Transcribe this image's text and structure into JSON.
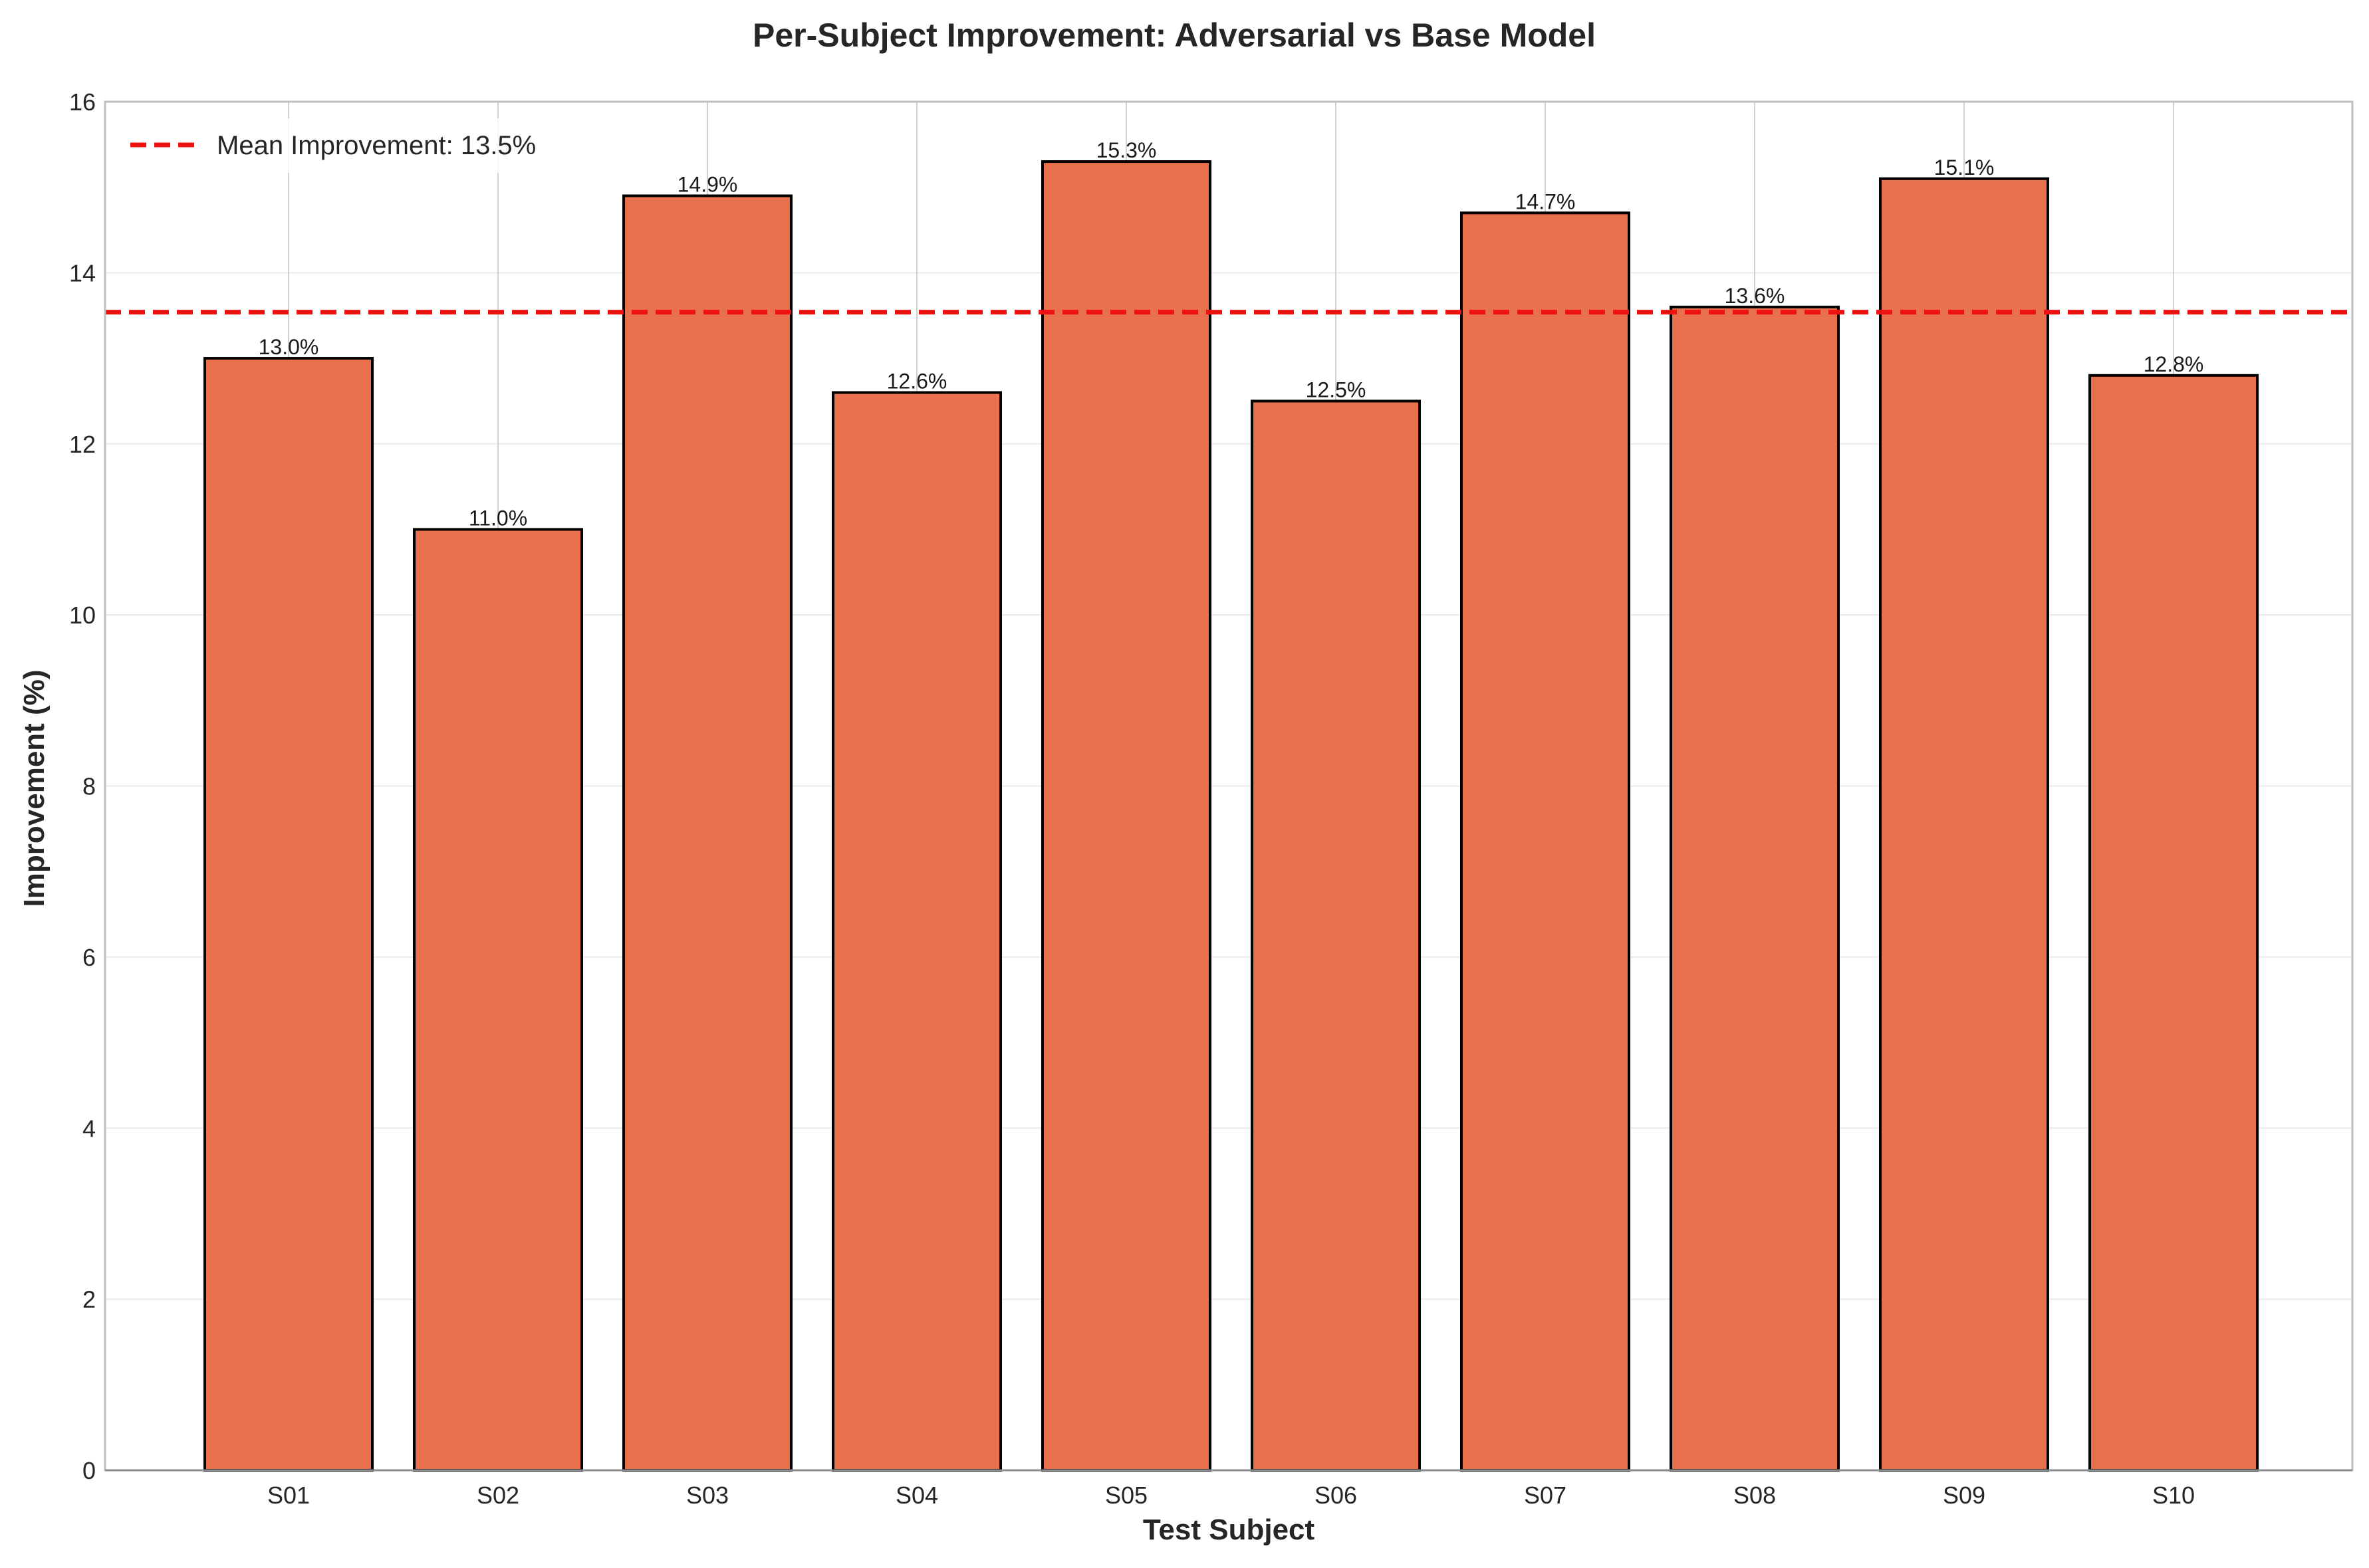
{
  "chart_data": {
    "type": "bar",
    "title": "Per-Subject Improvement: Adversarial vs Base Model",
    "xlabel": "Test Subject",
    "ylabel": "Improvement (%)",
    "categories": [
      "S01",
      "S02",
      "S03",
      "S04",
      "S05",
      "S06",
      "S07",
      "S08",
      "S09",
      "S10"
    ],
    "values": [
      13.0,
      11.0,
      14.9,
      12.6,
      15.3,
      12.5,
      14.7,
      13.6,
      15.1,
      12.8
    ],
    "data_labels": [
      "13.0%",
      "11.0%",
      "14.9%",
      "12.6%",
      "15.3%",
      "12.5%",
      "14.7%",
      "13.6%",
      "15.1%",
      "12.8%"
    ],
    "ylim": [
      0,
      16
    ],
    "yticks": [
      0,
      2,
      4,
      6,
      8,
      10,
      12,
      14,
      16
    ],
    "grid": true,
    "bar_color": "#e8704d",
    "bar_edge_color": "#000000",
    "mean_line": {
      "value": 13.54,
      "label": "Mean Improvement: 13.5%",
      "color": "#ee1111",
      "style": "dashed"
    },
    "legend_position": "top-left"
  }
}
